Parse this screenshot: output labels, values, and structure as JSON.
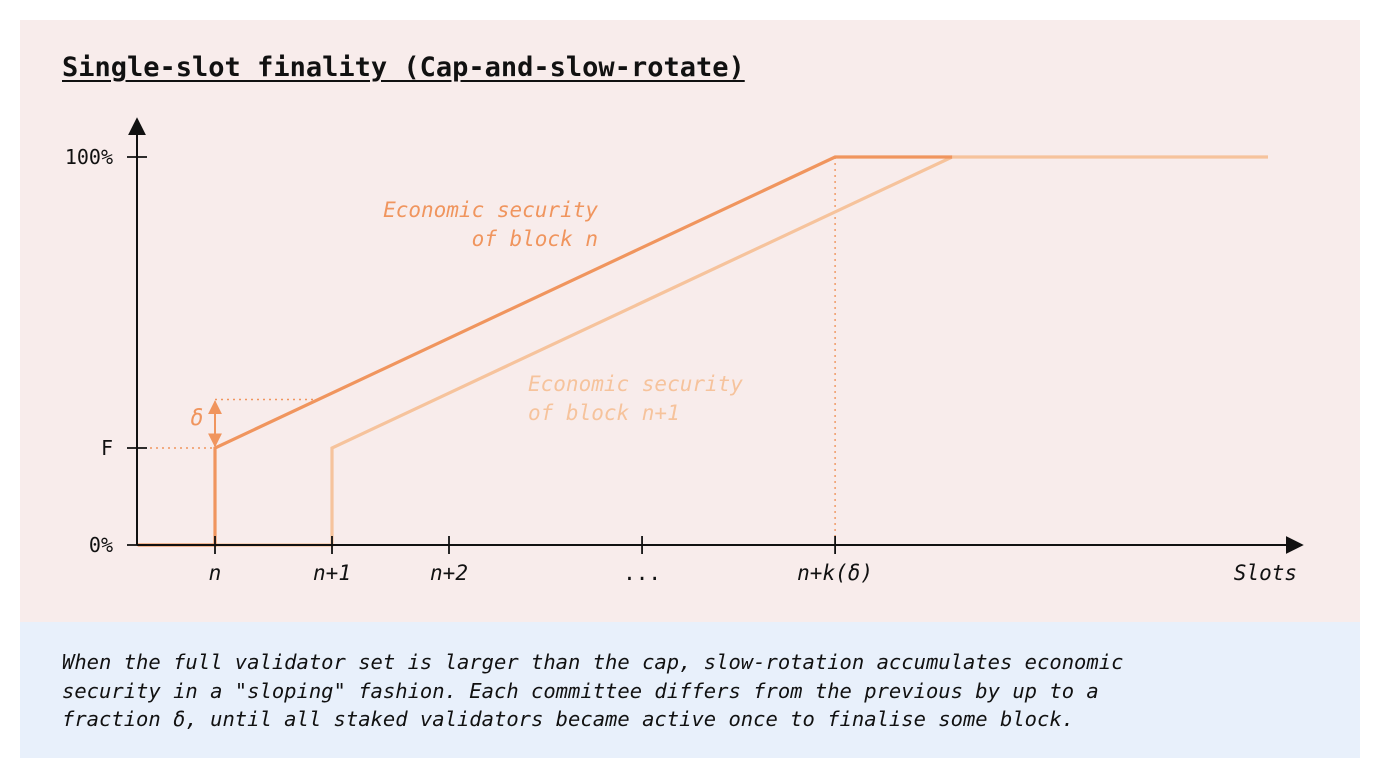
{
  "chart_data": {
    "type": "line",
    "title": "Single-slot finality (Cap-and-slow-rotate)",
    "xlabel": "Slots",
    "ylabel": "",
    "x_ticks": [
      "n",
      "n+1",
      "n+2",
      "...",
      "n+k(δ)"
    ],
    "y_ticks": [
      "0%",
      "F",
      "100%"
    ],
    "F_value": 25,
    "ylim": [
      0,
      100
    ],
    "xlim": [
      -0.66,
      9.0
    ],
    "grid": false,
    "legend": "none",
    "series": [
      {
        "name": "Economic security of block n",
        "label_lines": [
          "Economic security",
          "of block n"
        ],
        "color": "#f0955e",
        "points": [
          [
            -0.66,
            0
          ],
          [
            0,
            0
          ],
          [
            0,
            25
          ],
          [
            5.3,
            100
          ],
          [
            6.3,
            100
          ]
        ]
      },
      {
        "name": "Economic security of block n+1",
        "label_lines": [
          "Economic security",
          "of block n+1"
        ],
        "color": "#f6c39c",
        "points": [
          [
            0,
            0
          ],
          [
            1,
            0
          ],
          [
            1,
            25
          ],
          [
            6.3,
            100
          ],
          [
            9.0,
            100
          ]
        ]
      }
    ],
    "annotations": {
      "delta_label": "δ",
      "delta_value": 12.5,
      "delta_color": "#f0955e",
      "dotted_color": "#f0955e"
    }
  },
  "caption": {
    "lines": [
      "When the full validator set is larger than the cap, slow-rotation accumulates economic",
      "security in a \"sloping\" fashion. Each committee differs from the previous by up to a",
      "fraction δ, until all staked validators became active once to finalise some block."
    ]
  },
  "colors": {
    "chart_background": "#f8eceb",
    "caption_background": "#e8f0fb",
    "axis": "#111111"
  }
}
